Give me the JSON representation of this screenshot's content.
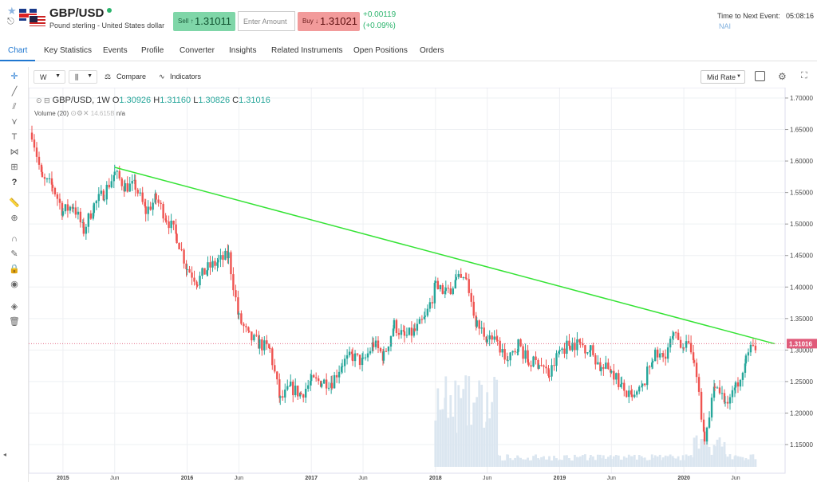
{
  "header": {
    "symbol": "GBP/USD",
    "description": "Pound sterling - United States dollar",
    "sell_label": "Sell ↑",
    "sell_price": "1.31011",
    "amount_placeholder": "Enter Amount",
    "buy_label": "Buy ↓",
    "buy_price": "1.31021",
    "change_abs": "+0.00119",
    "change_pct": "(+0.09%)",
    "next_event_label": "Time to Next Event:",
    "next_event_value": "05:08:16",
    "next_event_sub": "NAI"
  },
  "tabs": [
    "Chart",
    "Key Statistics",
    "Events",
    "Profile",
    "Converter",
    "Insights",
    "Related Instruments",
    "Open Positions",
    "Orders"
  ],
  "toolbar": {
    "interval": "W",
    "compare_label": "Compare",
    "indicators_label": "Indicators",
    "rate_mode": "Mid Rate"
  },
  "legend": {
    "title": "GBP/USD, 1W",
    "o_label": "O",
    "o_value": "1.30926",
    "h_label": "H",
    "h_value": "1.31160",
    "l_label": "L",
    "l_value": "1.30826",
    "c_label": "C",
    "c_value": "1.31016",
    "volume_label": "Volume (20)",
    "volume_value": "14.615B",
    "volume_na": "n/a"
  },
  "colors": {
    "up": "#26a69a",
    "down": "#ef5350",
    "trendline": "#34e334",
    "price_line": "#e05a7a",
    "volume": "#dbe6f0",
    "accent": "#1f77d0"
  },
  "chart_data": {
    "type": "candlestick",
    "interval": "1W",
    "ylim": [
      1.1,
      1.7
    ],
    "y_ticks": [
      "1.70000",
      "1.65000",
      "1.60000",
      "1.55000",
      "1.50000",
      "1.45000",
      "1.40000",
      "1.35000",
      "1.30000",
      "1.25000",
      "1.20000",
      "1.15000"
    ],
    "x_ticks": [
      "2015",
      "Jun",
      "2016",
      "Jun",
      "2017",
      "Jun",
      "2018",
      "Jun",
      "2019",
      "Jun",
      "2020",
      "Jun"
    ],
    "last_price": "1.31016",
    "weekly_close_path": [
      [
        "2014-10",
        1.645
      ],
      [
        "2014-11",
        1.57
      ],
      [
        "2014-12",
        1.56
      ],
      [
        "2015-01",
        1.52
      ],
      [
        "2015-02",
        1.53
      ],
      [
        "2015-03",
        1.49
      ],
      [
        "2015-04",
        1.53
      ],
      [
        "2015-05",
        1.55
      ],
      [
        "2015-06",
        1.58
      ],
      [
        "2015-07",
        1.56
      ],
      [
        "2015-08",
        1.56
      ],
      [
        "2015-09",
        1.52
      ],
      [
        "2015-10",
        1.54
      ],
      [
        "2015-11",
        1.51
      ],
      [
        "2015-12",
        1.48
      ],
      [
        "2016-01",
        1.43
      ],
      [
        "2016-02",
        1.41
      ],
      [
        "2016-03",
        1.43
      ],
      [
        "2016-04",
        1.44
      ],
      [
        "2016-05",
        1.45
      ],
      [
        "2016-06",
        1.35
      ],
      [
        "2016-07",
        1.32
      ],
      [
        "2016-08",
        1.31
      ],
      [
        "2016-09",
        1.3
      ],
      [
        "2016-10",
        1.22
      ],
      [
        "2016-11",
        1.24
      ],
      [
        "2016-12",
        1.23
      ],
      [
        "2017-01",
        1.25
      ],
      [
        "2017-02",
        1.25
      ],
      [
        "2017-03",
        1.25
      ],
      [
        "2017-04",
        1.28
      ],
      [
        "2017-05",
        1.29
      ],
      [
        "2017-06",
        1.28
      ],
      [
        "2017-07",
        1.31
      ],
      [
        "2017-08",
        1.29
      ],
      [
        "2017-09",
        1.34
      ],
      [
        "2017-10",
        1.32
      ],
      [
        "2017-11",
        1.33
      ],
      [
        "2017-12",
        1.35
      ],
      [
        "2018-01",
        1.4
      ],
      [
        "2018-02",
        1.39
      ],
      [
        "2018-03",
        1.41
      ],
      [
        "2018-04",
        1.41
      ],
      [
        "2018-05",
        1.34
      ],
      [
        "2018-06",
        1.32
      ],
      [
        "2018-07",
        1.31
      ],
      [
        "2018-08",
        1.28
      ],
      [
        "2018-09",
        1.31
      ],
      [
        "2018-10",
        1.28
      ],
      [
        "2018-11",
        1.28
      ],
      [
        "2018-12",
        1.26
      ],
      [
        "2019-01",
        1.3
      ],
      [
        "2019-02",
        1.31
      ],
      [
        "2019-03",
        1.31
      ],
      [
        "2019-04",
        1.3
      ],
      [
        "2019-05",
        1.27
      ],
      [
        "2019-06",
        1.27
      ],
      [
        "2019-07",
        1.24
      ],
      [
        "2019-08",
        1.22
      ],
      [
        "2019-09",
        1.24
      ],
      [
        "2019-10",
        1.29
      ],
      [
        "2019-11",
        1.29
      ],
      [
        "2019-12",
        1.32
      ],
      [
        "2020-01",
        1.31
      ],
      [
        "2020-02",
        1.29
      ],
      [
        "2020-03",
        1.16
      ],
      [
        "2020-04",
        1.25
      ],
      [
        "2020-05",
        1.22
      ],
      [
        "2020-06",
        1.24
      ],
      [
        "2020-07",
        1.29
      ],
      [
        "2020-08",
        1.31
      ]
    ],
    "trendline": [
      [
        "2015-06",
        1.59
      ],
      [
        "2020-09",
        1.31
      ]
    ],
    "volume_present_from": "2018-01"
  }
}
